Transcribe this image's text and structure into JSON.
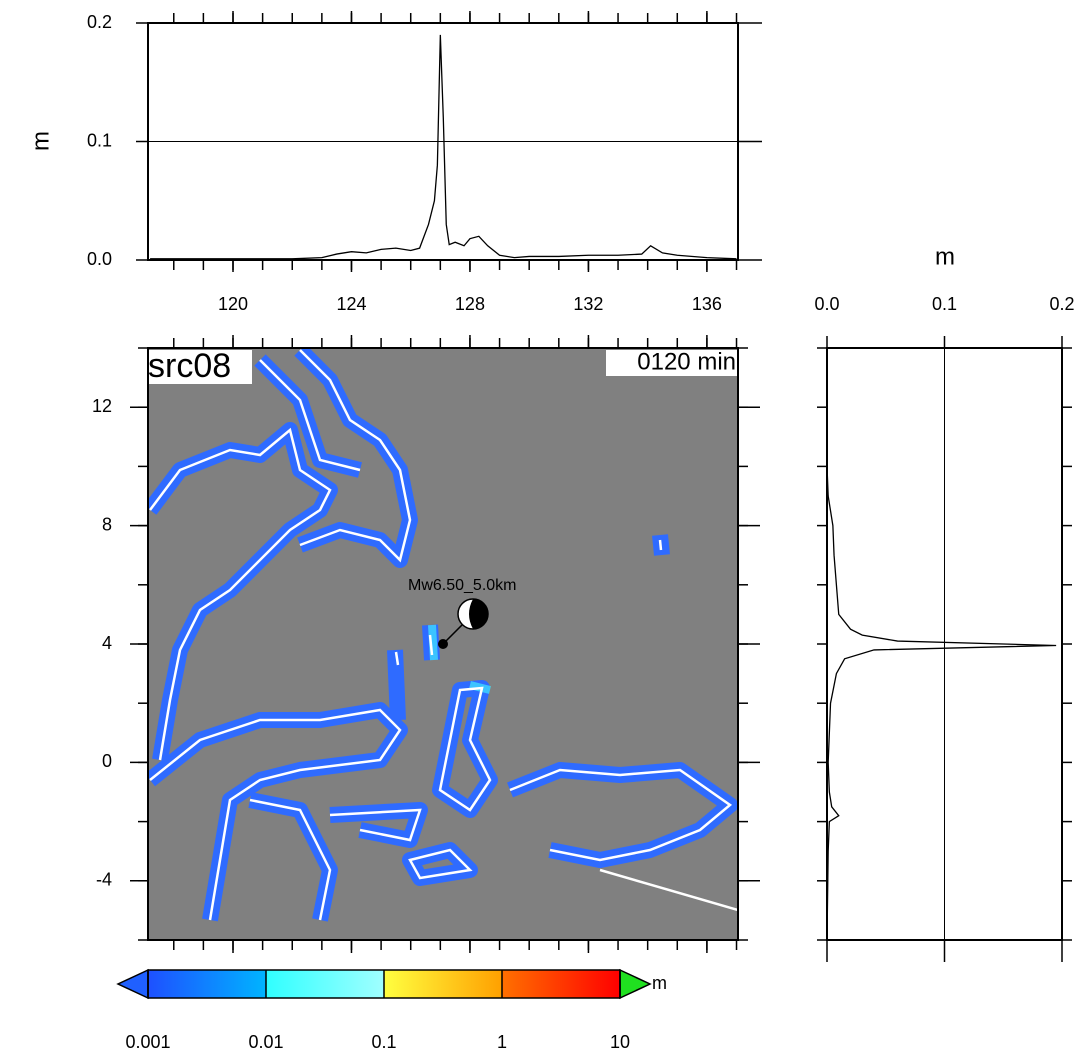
{
  "chart_data": [
    {
      "type": "line",
      "ylabel": "m",
      "x": [
        117.2,
        118,
        119,
        120,
        121,
        122,
        123,
        123.5,
        124,
        124.5,
        125,
        125.5,
        126,
        126.3,
        126.6,
        126.8,
        126.9,
        127.0,
        127.1,
        127.2,
        127.3,
        127.5,
        127.8,
        128,
        128.3,
        128.6,
        129,
        129.5,
        130,
        131,
        132,
        133,
        133.8,
        134.1,
        134.5,
        135,
        136,
        137
      ],
      "values": [
        0.001,
        0.001,
        0.001,
        0.001,
        0.001,
        0.001,
        0.002,
        0.005,
        0.007,
        0.006,
        0.009,
        0.01,
        0.008,
        0.01,
        0.03,
        0.05,
        0.08,
        0.19,
        0.12,
        0.03,
        0.013,
        0.015,
        0.012,
        0.018,
        0.02,
        0.012,
        0.004,
        0.002,
        0.003,
        0.003,
        0.004,
        0.004,
        0.005,
        0.012,
        0.006,
        0.004,
        0.002,
        0.001
      ],
      "color": "#000000",
      "xlim": [
        117.13,
        137.05
      ],
      "xticks": [
        120,
        124,
        128,
        132,
        136
      ],
      "ylim": [
        0,
        0.2
      ],
      "yticks": [
        {
          "value": 0,
          "label": "0.0"
        },
        {
          "value": 0.1,
          "label": "0.1"
        },
        {
          "value": 0.2,
          "label": "0.2"
        }
      ],
      "grid": true
    },
    {
      "type": "map",
      "title": "src08",
      "annotation": "0120 min",
      "source_label": "Mw6.50_5.0km",
      "epicenter": {
        "x": 127.09,
        "y": 4.0
      },
      "xlim": [
        117.13,
        137.05
      ],
      "ylim": [
        -6,
        14
      ],
      "yticks": [
        -4,
        0,
        4,
        8,
        12
      ]
    },
    {
      "type": "hline",
      "xlabel": "m",
      "y": [
        -6,
        -3,
        -2,
        -1.8,
        -1.5,
        -1,
        0,
        1,
        2,
        3,
        3.5,
        3.8,
        3.95,
        4.1,
        4.3,
        4.5,
        5,
        6,
        7,
        8,
        9,
        10,
        14
      ],
      "values": [
        0,
        0.001,
        0.002,
        0.01,
        0.004,
        0.002,
        0.001,
        0.002,
        0.003,
        0.008,
        0.015,
        0.04,
        0.195,
        0.06,
        0.03,
        0.02,
        0.01,
        0.008,
        0.006,
        0.005,
        0.001,
        0,
        0
      ],
      "color": "#000000",
      "xlim": [
        0,
        0.2
      ],
      "xticks": [
        {
          "value": 0,
          "label": "0.0"
        },
        {
          "value": 0.1,
          "label": "0.1"
        },
        {
          "value": 0.2,
          "label": "0.2"
        }
      ],
      "ylim": [
        -6,
        14
      ],
      "grid": true
    },
    {
      "type": "colorbar",
      "unit": "m",
      "log": true,
      "ticks": [
        0.001,
        0.01,
        0.1,
        1,
        10
      ],
      "colors": [
        [
          "#1e50ff",
          "#00b4ff"
        ],
        [
          "#30ffff",
          "#a0ffff"
        ],
        [
          "#ffff40",
          "#ffa000"
        ],
        [
          "#ff7000",
          "#ff0000"
        ]
      ],
      "under_color": "#2060ff",
      "over_color": "#20e020"
    }
  ]
}
